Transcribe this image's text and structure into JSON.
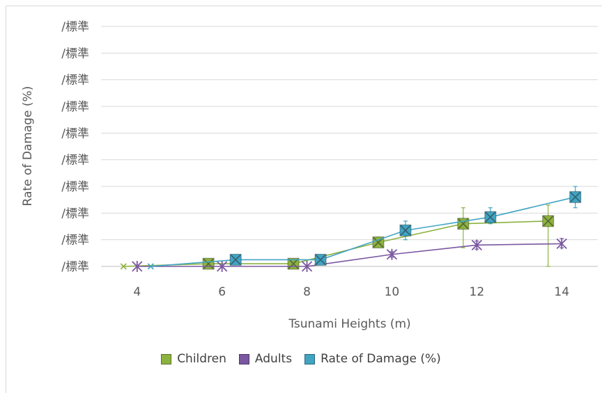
{
  "chart_data": {
    "type": "line",
    "title": "",
    "xlabel": "Tsunami Heights (m)",
    "ylabel": "Rate of Damage (%)",
    "x_ticks": [
      4,
      6,
      8,
      10,
      12,
      14
    ],
    "y_tick_labels": [
      "/標準",
      "/標準",
      "/標準",
      "/標準",
      "/標準",
      "/標準",
      "/標準",
      "/標準",
      "/標準",
      "/標準"
    ],
    "ylim": [
      0,
      90
    ],
    "grid": true,
    "legend_position": "bottom",
    "series": [
      {
        "name": "Children",
        "color": "#8cb23f",
        "marker": "square-x",
        "points": [
          [
            4,
            0
          ],
          [
            6,
            1
          ],
          [
            8,
            1
          ],
          [
            10,
            9
          ],
          [
            12,
            16
          ],
          [
            14,
            17
          ]
        ],
        "error_low": [
          0,
          0.5,
          0.5,
          1.5,
          9,
          17
        ],
        "error_high": [
          0,
          0.5,
          0.5,
          2,
          6,
          6
        ]
      },
      {
        "name": "Adults",
        "color": "#7a57a0",
        "marker": "star",
        "points": [
          [
            4,
            0
          ],
          [
            6,
            0
          ],
          [
            8,
            0
          ],
          [
            10,
            4.5
          ],
          [
            12,
            8
          ],
          [
            14,
            8.5
          ]
        ],
        "error_low": [
          0,
          0,
          0,
          1,
          1.5,
          1.5
        ],
        "error_high": [
          0,
          0,
          0,
          1,
          1.5,
          2
        ]
      },
      {
        "name": "Rate of Damage (%)",
        "color": "#41a4c3",
        "marker": "square-x",
        "points": [
          [
            4,
            0
          ],
          [
            6,
            2.5
          ],
          [
            8,
            2.5
          ],
          [
            10,
            13.5
          ],
          [
            12,
            18.5
          ],
          [
            14,
            26
          ]
        ],
        "error_low": [
          0,
          0.5,
          0.5,
          3.5,
          2.5,
          4
        ],
        "error_high": [
          0,
          1,
          1,
          3.5,
          3.5,
          4
        ]
      }
    ]
  }
}
